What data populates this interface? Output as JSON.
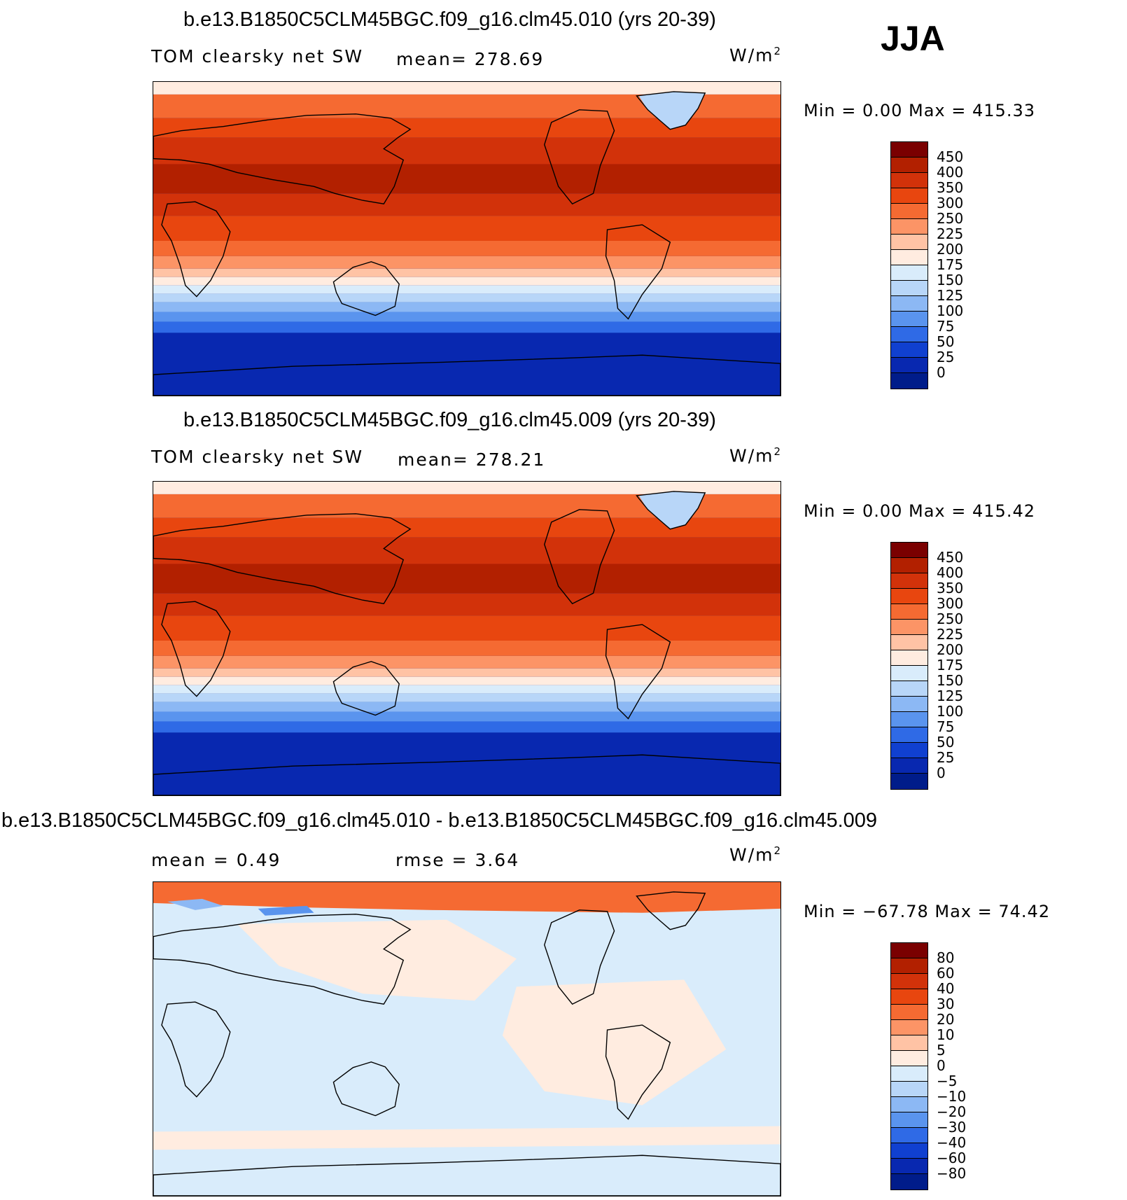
{
  "season": "JJA",
  "units_label": "W/m",
  "units_sup": "2",
  "panels": [
    {
      "title": "b.e13.B1850C5CLM45BGC.f09_g16.clm45.010 (yrs 20-39)",
      "variable": "TOM clearsky net SW",
      "stat1": "mean=  278.69",
      "minmax": "Min  =     0.00  Max  =  415.33",
      "colorbar": {
        "ticks": [
          "450",
          "400",
          "350",
          "300",
          "250",
          "225",
          "200",
          "175",
          "150",
          "125",
          "100",
          "75",
          "50",
          "25",
          "0"
        ],
        "colors": [
          "#7a0000",
          "#b22000",
          "#d2320a",
          "#e8460f",
          "#f56a32",
          "#fc9466",
          "#ffc3a5",
          "#ffece0",
          "#d9ecfb",
          "#b8d6f8",
          "#8cb8f4",
          "#5a94ee",
          "#2f6ae6",
          "#1040d0",
          "#0828b0",
          "#001c8a"
        ]
      }
    },
    {
      "title": "b.e13.B1850C5CLM45BGC.f09_g16.clm45.009 (yrs 20-39)",
      "variable": "TOM clearsky net SW",
      "stat1": "mean=  278.21",
      "minmax": "Min  =     0.00  Max  =  415.42",
      "colorbar": {
        "ticks": [
          "450",
          "400",
          "350",
          "300",
          "250",
          "225",
          "200",
          "175",
          "150",
          "125",
          "100",
          "75",
          "50",
          "25",
          "0"
        ],
        "colors": [
          "#7a0000",
          "#b22000",
          "#d2320a",
          "#e8460f",
          "#f56a32",
          "#fc9466",
          "#ffc3a5",
          "#ffece0",
          "#d9ecfb",
          "#b8d6f8",
          "#8cb8f4",
          "#5a94ee",
          "#2f6ae6",
          "#1040d0",
          "#0828b0",
          "#001c8a"
        ]
      }
    },
    {
      "title": "b.e13.B1850C5CLM45BGC.f09_g16.clm45.010 - b.e13.B1850C5CLM45BGC.f09_g16.clm45.009",
      "stat1": "mean  =     0.49",
      "stat2": "rmse  =     3.64",
      "minmax": "Min  = −67.78  Max  =    74.42",
      "colorbar": {
        "ticks": [
          "80",
          "60",
          "40",
          "30",
          "20",
          "10",
          "5",
          "0",
          "−5",
          "−10",
          "−20",
          "−30",
          "−40",
          "−60",
          "−80"
        ],
        "colors": [
          "#7a0000",
          "#b22000",
          "#d2320a",
          "#e8460f",
          "#f56a32",
          "#fc9466",
          "#ffc3a5",
          "#ffece0",
          "#d9ecfb",
          "#b8d6f8",
          "#8cb8f4",
          "#5a94ee",
          "#2f6ae6",
          "#1040d0",
          "#0828b0",
          "#001c8a"
        ]
      }
    }
  ]
}
